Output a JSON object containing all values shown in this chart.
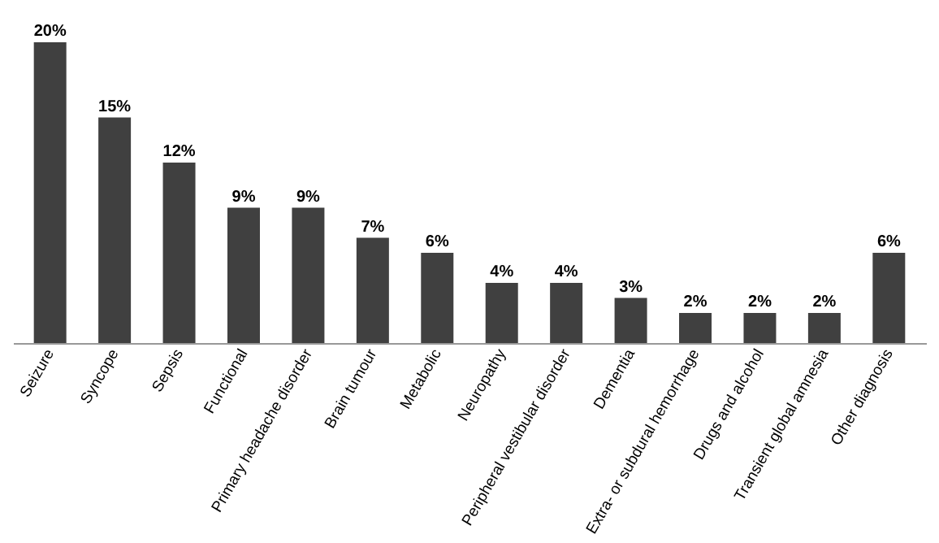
{
  "chart_data": {
    "type": "bar",
    "categories": [
      "Seizure",
      "Syncope",
      "Sepsis",
      "Functional",
      "Primary headache disorder",
      "Brain tumour",
      "Metabolic",
      "Neuropathy",
      "Peripheral vestibular disorder",
      "Dementia",
      "Extra- or subdural hemorrhage",
      "Drugs and alcohol",
      "Transient global amnesia",
      "Other diagnosis"
    ],
    "values": [
      20,
      15,
      12,
      9,
      9,
      7,
      6,
      4,
      4,
      3,
      2,
      2,
      2,
      6
    ],
    "value_labels": [
      "20%",
      "15%",
      "12%",
      "9%",
      "9%",
      "7%",
      "6%",
      "4%",
      "4%",
      "3%",
      "2%",
      "2%",
      "2%",
      "6%"
    ],
    "color": "#404040",
    "grid": false
  }
}
